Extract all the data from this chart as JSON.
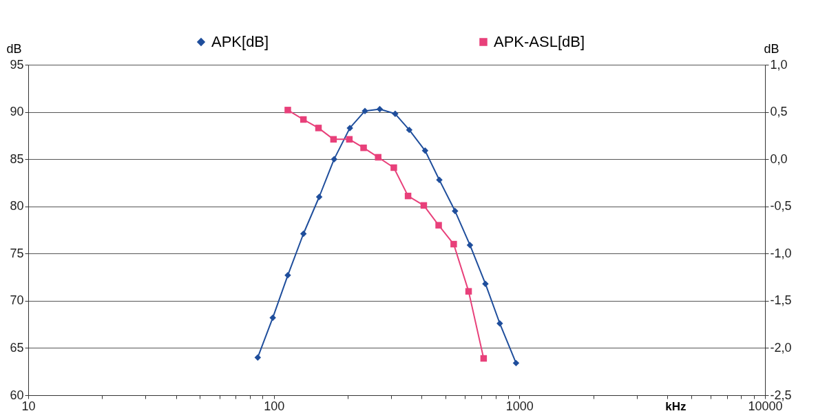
{
  "chart_data": {
    "type": "line",
    "xlabel": "kHz",
    "ylabel": "dB",
    "y2label": "dB",
    "log": "x",
    "grid": "y",
    "legend": "top",
    "line_style": "solid",
    "xlim": [
      10,
      10000
    ],
    "xticks": [
      10,
      {
        "value": 20,
        "label": null
      },
      {
        "value": 30,
        "label": null
      },
      {
        "value": 40,
        "label": null
      },
      {
        "value": 50,
        "label": null
      },
      {
        "value": 60,
        "label": null
      },
      {
        "value": 70,
        "label": null
      },
      {
        "value": 80,
        "label": null
      },
      {
        "value": 90,
        "label": null
      },
      100,
      {
        "value": 200,
        "label": null
      },
      {
        "value": 300,
        "label": null
      },
      {
        "value": 400,
        "label": null
      },
      {
        "value": 500,
        "label": null
      },
      {
        "value": 600,
        "label": null
      },
      {
        "value": 700,
        "label": null
      },
      {
        "value": 800,
        "label": null
      },
      {
        "value": 900,
        "label": null
      },
      1000,
      {
        "value": 2000,
        "label": null
      },
      {
        "value": 3000,
        "label": null
      },
      {
        "value": 4000,
        "label": null
      },
      {
        "value": 5000,
        "label": null
      },
      {
        "value": 6000,
        "label": null
      },
      {
        "value": 7000,
        "label": null
      },
      {
        "value": 8000,
        "label": null
      },
      {
        "value": 9000,
        "label": null
      },
      10000
    ],
    "ylim": [
      60,
      95
    ],
    "yticks": [
      60,
      65,
      70,
      75,
      80,
      85,
      90,
      95
    ],
    "y2lim": [
      -2.5,
      1.0
    ],
    "y2ticks": [
      {
        "value": -2.5,
        "label": "-2,5"
      },
      {
        "value": -2.0,
        "label": "-2,0"
      },
      {
        "value": -1.5,
        "label": "-1,5"
      },
      {
        "value": -1.0,
        "label": "-1,0"
      },
      {
        "value": -0.5,
        "label": "-0,5"
      },
      {
        "value": 0.0,
        "label": "0,0"
      },
      {
        "value": 0.5,
        "label": "0,5"
      },
      {
        "value": 1.0,
        "label": "1,0"
      }
    ],
    "series": [
      {
        "name": "APK[dB]",
        "color": "#1f4e9c",
        "marker": "diamond",
        "x": [
          86,
          99,
          114,
          132,
          153,
          176,
          204,
          235,
          270,
          312,
          356,
          413,
          472,
          547,
          629,
          727,
          832,
          969
        ],
        "values": [
          64.0,
          68.2,
          72.7,
          77.1,
          81.0,
          85.0,
          88.3,
          90.1,
          90.3,
          89.8,
          88.1,
          85.9,
          82.8,
          79.5,
          75.9,
          71.8,
          67.6,
          63.4
        ]
      },
      {
        "name": "APK-ASL[dB]",
        "color": "#e8407a",
        "marker": "square",
        "axis": "y2",
        "x": [
          114,
          132,
          152,
          175,
          203,
          232,
          266,
          308,
          352,
          408,
          469,
          540,
          621,
          715
        ],
        "values": [
          0.52,
          0.42,
          0.33,
          0.21,
          0.21,
          0.12,
          0.02,
          -0.09,
          -0.39,
          -0.49,
          -0.7,
          -0.9,
          -1.4,
          -2.11
        ]
      }
    ]
  }
}
